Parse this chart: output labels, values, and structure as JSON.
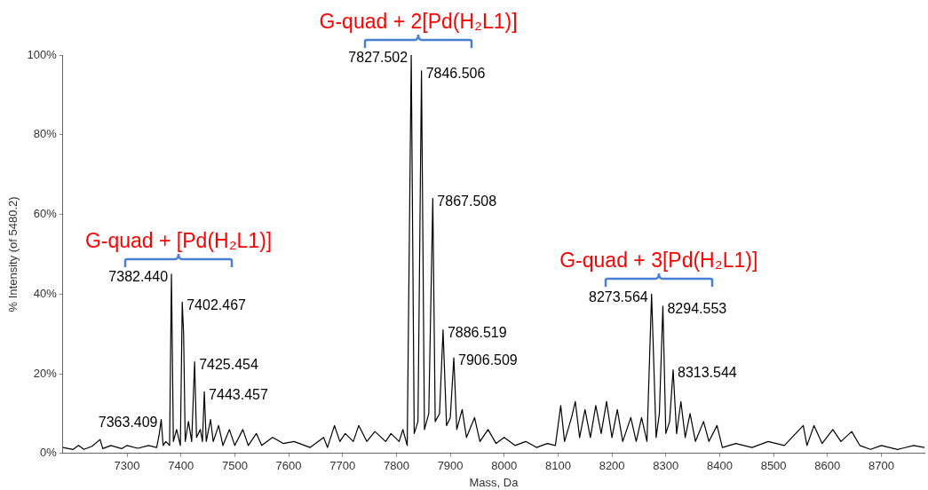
{
  "chart_data": {
    "type": "line",
    "xlabel": "Mass, Da",
    "ylabel": "% Intensity (of 5480.2)",
    "xlim": [
      7181,
      8780
    ],
    "xticks": [
      7300,
      7400,
      7500,
      7600,
      7700,
      7800,
      7900,
      8000,
      8100,
      8200,
      8300,
      8400,
      8500,
      8600,
      8700
    ],
    "ylim": [
      0,
      100
    ],
    "yticks": [
      {
        "value": 0,
        "label": "0%"
      },
      {
        "value": 20,
        "label": "20%"
      },
      {
        "value": 40,
        "label": "40%"
      },
      {
        "value": 60,
        "label": "60%"
      },
      {
        "value": 80,
        "label": "80%"
      },
      {
        "value": 100,
        "label": "100%"
      }
    ],
    "grid": false,
    "legend": false,
    "marker": "none",
    "line_style": "solid",
    "series": [
      {
        "color": "#000000",
        "x": [
          7181,
          7200,
          7210,
          7220,
          7235,
          7250,
          7255,
          7270,
          7290,
          7300,
          7320,
          7340,
          7355,
          7360,
          7363.409,
          7367,
          7372,
          7379,
          7382.44,
          7386,
          7392,
          7399,
          7402.467,
          7405,
          7408,
          7414,
          7420,
          7425.454,
          7429,
          7436,
          7440,
          7443.457,
          7447,
          7455,
          7460,
          7470,
          7478,
          7490,
          7500,
          7515,
          7525,
          7540,
          7550,
          7570,
          7590,
          7610,
          7640,
          7665,
          7672,
          7685,
          7695,
          7705,
          7720,
          7730,
          7745,
          7760,
          7780,
          7790,
          7805,
          7812,
          7820,
          7827.502,
          7833,
          7840,
          7846.506,
          7852,
          7860,
          7867.508,
          7872,
          7880,
          7886.519,
          7893,
          7900,
          7906.509,
          7912,
          7922,
          7930,
          7945,
          7955,
          7970,
          7985,
          8000,
          8020,
          8040,
          8060,
          8080,
          8095,
          8105,
          8112,
          8125,
          8132,
          8140,
          8150,
          8160,
          8170,
          8180,
          8190,
          8200,
          8210,
          8220,
          8235,
          8245,
          8255,
          8265,
          8273.564,
          8282,
          8288,
          8294.553,
          8300,
          8307,
          8313.544,
          8320,
          8328,
          8336,
          8345,
          8355,
          8370,
          8380,
          8395,
          8405,
          8430,
          8460,
          8490,
          8520,
          8555,
          8562,
          8575,
          8590,
          8610,
          8625,
          8645,
          8660,
          8680,
          8700,
          8730,
          8760,
          8780
        ],
        "values": [
          1.5,
          1,
          2,
          1,
          1.8,
          3.5,
          1.2,
          2,
          1.2,
          2,
          1.3,
          2,
          1.5,
          5,
          8.5,
          2,
          3,
          2,
          45,
          3,
          6,
          2,
          38,
          30,
          3,
          8,
          3,
          23,
          4,
          6,
          3,
          15.5,
          3,
          8.5,
          3,
          7,
          2,
          6,
          2,
          6,
          2,
          5,
          2,
          4,
          2.5,
          3,
          1.5,
          4,
          1.5,
          7,
          3,
          5,
          3,
          7,
          3,
          5.5,
          3,
          5,
          3,
          6,
          2,
          100,
          5,
          8,
          96,
          6,
          10,
          64,
          8,
          10,
          31,
          7,
          9,
          24,
          6,
          11,
          4,
          9,
          3,
          6,
          2.5,
          4,
          2,
          3,
          1.5,
          2.5,
          2,
          12,
          3,
          9,
          13,
          4,
          11,
          4,
          12,
          5,
          13,
          4,
          11,
          3,
          9,
          3,
          9,
          3,
          40,
          4,
          10,
          37,
          5,
          8,
          21,
          5,
          13,
          4,
          10,
          3,
          8,
          3,
          7,
          1.5,
          2.5,
          1.5,
          3,
          2,
          7,
          2,
          7,
          2.5,
          6,
          3,
          5.5,
          2,
          1,
          2,
          1,
          2,
          1.5
        ]
      }
    ],
    "annotations": [
      {
        "text": "7363.409",
        "x": 7363.409,
        "y": 8.5
      },
      {
        "text": "7382.440",
        "x": 7382.44,
        "y": 45
      },
      {
        "text": "7402.467",
        "x": 7402.467,
        "y": 38
      },
      {
        "text": "7425.454",
        "x": 7425.454,
        "y": 23
      },
      {
        "text": "7443.457",
        "x": 7443.457,
        "y": 15.5
      },
      {
        "text": "7827.502",
        "x": 7827.502,
        "y": 100
      },
      {
        "text": "7846.506",
        "x": 7846.506,
        "y": 96
      },
      {
        "text": "7867.508",
        "x": 7867.508,
        "y": 64
      },
      {
        "text": "7886.519",
        "x": 7886.519,
        "y": 31
      },
      {
        "text": "7906.509",
        "x": 7906.509,
        "y": 24
      },
      {
        "text": "8273.564",
        "x": 8273.564,
        "y": 40
      },
      {
        "text": "8294.553",
        "x": 8294.553,
        "y": 37
      },
      {
        "text": "8313.544",
        "x": 8313.544,
        "y": 21
      },
      "G-quad + [Pd(H₂L1)]",
      "G-quad + 2[Pd(H₂L1)]",
      "G-quad + 3[Pd(H₂L1)]"
    ]
  }
}
